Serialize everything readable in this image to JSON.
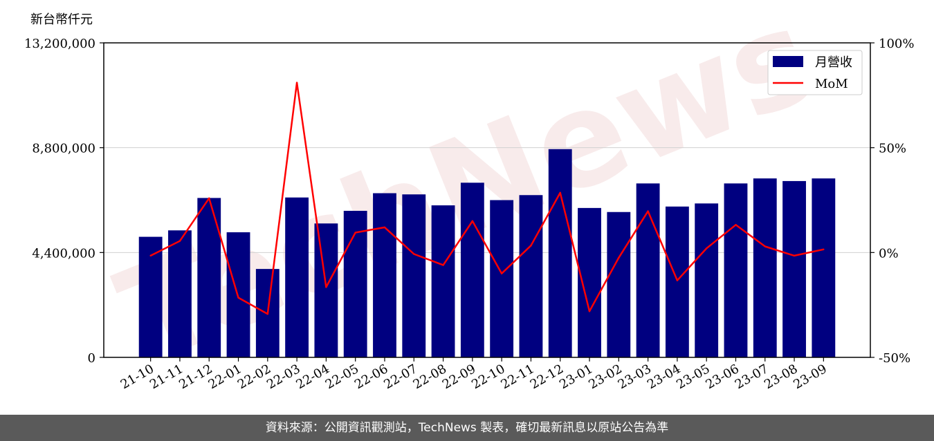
{
  "unit_label": "新台幣仟元",
  "footer_text": "資料來源：公開資訊觀測站，TechNews 製表，確切最新訊息以原站公告為準",
  "watermark": "TechNews",
  "colors": {
    "bar": "#000080",
    "line": "#ff0000",
    "grid": "#d0d0d0",
    "footer_bg": "#5a5a5a"
  },
  "chart_data": {
    "type": "bar",
    "categories": [
      "21-10",
      "21-11",
      "21-12",
      "22-01",
      "22-02",
      "22-03",
      "22-04",
      "22-05",
      "22-06",
      "22-07",
      "22-08",
      "22-09",
      "22-10",
      "22-11",
      "22-12",
      "23-01",
      "23-02",
      "23-03",
      "23-04",
      "23-05",
      "23-06",
      "23-07",
      "23-08",
      "23-09"
    ],
    "series": [
      {
        "name": "月營收",
        "axis": "left",
        "type": "bar",
        "values": [
          5060000,
          5330000,
          6690000,
          5250000,
          3710000,
          6710000,
          5620000,
          6150000,
          6890000,
          6840000,
          6380000,
          7330000,
          6600000,
          6810000,
          8740000,
          6270000,
          6100000,
          7300000,
          6330000,
          6460000,
          7300000,
          7510000,
          7400000,
          7510000
        ]
      },
      {
        "name": "MoM",
        "axis": "right",
        "type": "line",
        "values": [
          -1.5,
          5.5,
          25.9,
          -21.5,
          -29.3,
          81.0,
          -16.5,
          9.5,
          12.0,
          -0.7,
          -6.0,
          15.0,
          -10.0,
          3.3,
          28.5,
          -28.0,
          -2.5,
          19.7,
          -13.3,
          2.0,
          13.2,
          2.9,
          -1.5,
          1.5
        ]
      }
    ],
    "left_axis": {
      "ylim": [
        0,
        13200000
      ],
      "ticks": [
        0,
        4400000,
        8800000,
        13200000
      ],
      "tick_labels": [
        "0",
        "4,400,000",
        "8,800,000",
        "13,200,000"
      ]
    },
    "right_axis": {
      "ylim": [
        -50,
        100
      ],
      "ticks": [
        -50,
        0,
        50,
        100
      ],
      "tick_labels": [
        "-50%",
        "0%",
        "50%",
        "100%"
      ]
    },
    "grid": "horizontal",
    "legend_position": "top-right"
  }
}
